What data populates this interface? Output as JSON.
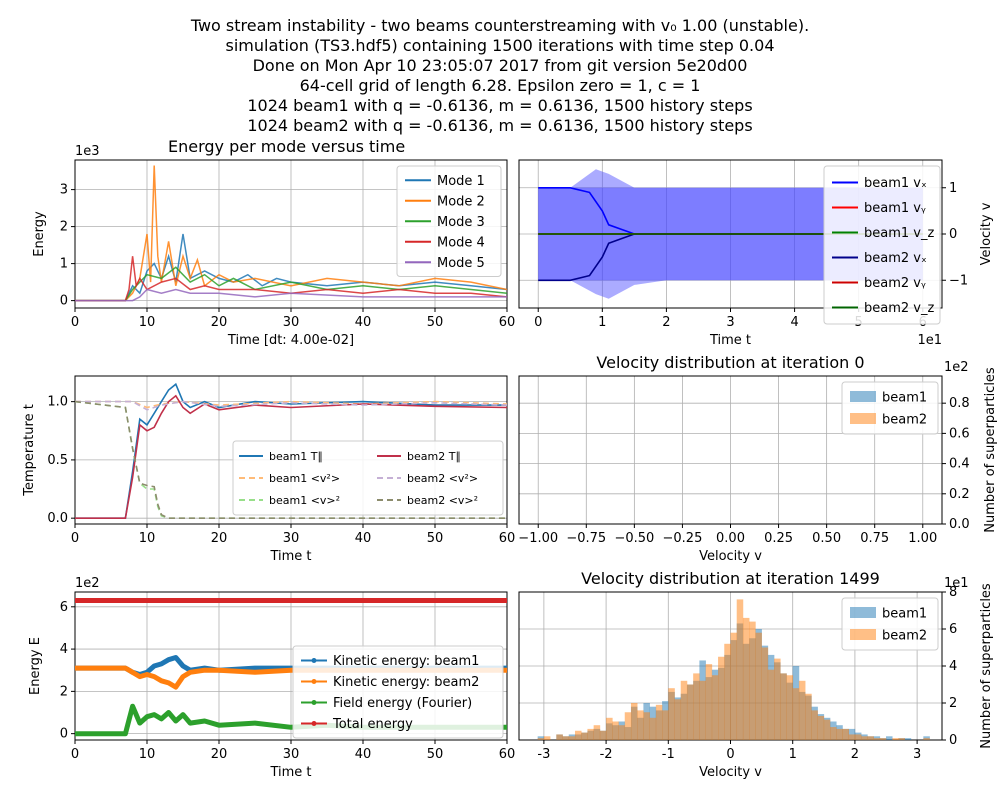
{
  "figure": {
    "title_lines": [
      "Two stream instability - two beams counterstreaming with v₀ 1.00 (unstable).",
      "simulation (TS3.hdf5) containing 1500 iterations with time step 0.04",
      "Done on Mon Apr 10 23:05:07 2017 from git version 5e20d00",
      "64-cell grid of length 6.28. Epsilon zero = 1, c = 1",
      "1024 beam1 with q = -0.6136, m = 0.6136, 1500 history steps",
      "1024 beam2 with q = -0.6136, m = 0.6136, 1500 history steps"
    ]
  },
  "chart_data": [
    {
      "id": "modes",
      "type": "line",
      "title": "Energy per mode versus time",
      "xlabel": "Time [dt: 4.00e-02]",
      "ylabel": "Energy",
      "y_multiplier": "1e3",
      "xlim": [
        0,
        60
      ],
      "ylim": [
        -0.2,
        3.8
      ],
      "xticks": [
        0,
        10,
        20,
        30,
        40,
        50,
        60
      ],
      "yticks": [
        0,
        1,
        2,
        3
      ],
      "grid": true,
      "legend": "top-right",
      "colors": [
        "#1f77b4",
        "#ff7f0e",
        "#2ca02c",
        "#d62728",
        "#9467bd"
      ],
      "series": [
        {
          "name": "Mode 1",
          "x": [
            0,
            7,
            8,
            9,
            10,
            11,
            12,
            13,
            14,
            15,
            16,
            18,
            20,
            22,
            24,
            26,
            28,
            30,
            35,
            40,
            45,
            50,
            55,
            60
          ],
          "y": [
            0,
            0,
            0.4,
            0.2,
            0.8,
            1.0,
            0.6,
            1.2,
            0.5,
            1.8,
            0.6,
            0.8,
            0.6,
            0.5,
            0.7,
            0.4,
            0.6,
            0.5,
            0.4,
            0.5,
            0.4,
            0.5,
            0.4,
            0.3
          ]
        },
        {
          "name": "Mode 2",
          "x": [
            0,
            7,
            8,
            9,
            10,
            10.5,
            11,
            11.5,
            12,
            13,
            14,
            15,
            16,
            17,
            18,
            20,
            22,
            25,
            30,
            35,
            40,
            45,
            50,
            55,
            60
          ],
          "y": [
            0,
            0,
            0.2,
            0.6,
            1.8,
            0.5,
            3.65,
            1.2,
            0.5,
            1.6,
            0.4,
            1.2,
            0.6,
            1.1,
            0.4,
            0.7,
            0.5,
            0.6,
            0.4,
            0.6,
            0.5,
            0.4,
            0.6,
            0.5,
            0.3
          ]
        },
        {
          "name": "Mode 3",
          "x": [
            0,
            7,
            8,
            9,
            10,
            12,
            14,
            16,
            18,
            20,
            22,
            25,
            30,
            35,
            40,
            45,
            50,
            55,
            60
          ],
          "y": [
            0,
            0,
            0.3,
            0.5,
            0.7,
            0.6,
            0.9,
            0.5,
            0.7,
            0.4,
            0.6,
            0.3,
            0.5,
            0.3,
            0.4,
            0.3,
            0.4,
            0.3,
            0.2
          ]
        },
        {
          "name": "Mode 4",
          "x": [
            0,
            7,
            7.5,
            8,
            8.5,
            9,
            10,
            12,
            14,
            16,
            18,
            20,
            25,
            30,
            35,
            40,
            45,
            50,
            55,
            60
          ],
          "y": [
            0,
            0,
            0.3,
            1.2,
            0.4,
            0.6,
            0.3,
            0.5,
            0.6,
            0.3,
            0.4,
            0.3,
            0.3,
            0.2,
            0.3,
            0.2,
            0.3,
            0.2,
            0.2,
            0.1
          ]
        },
        {
          "name": "Mode 5",
          "x": [
            0,
            8,
            9,
            10,
            12,
            14,
            16,
            20,
            25,
            30,
            40,
            50,
            60
          ],
          "y": [
            0,
            0,
            0.1,
            0.3,
            0.2,
            0.3,
            0.2,
            0.2,
            0.1,
            0.2,
            0.1,
            0.1,
            0.1
          ]
        }
      ]
    },
    {
      "id": "velocity",
      "type": "line",
      "xlabel": "Time t",
      "ylabel": "Velocity v",
      "x_multiplier": "1e1",
      "xlim": [
        -0.3,
        6.3
      ],
      "ylim": [
        -1.6,
        1.6
      ],
      "xticks": [
        0,
        1,
        2,
        3,
        4,
        5,
        6
      ],
      "yticks": [
        -1,
        0,
        1
      ],
      "grid": true,
      "legend": "top-right",
      "band_color": "#4444ff",
      "band": {
        "t": [
          0,
          0.5,
          0.9,
          1.1,
          1.5,
          2,
          3,
          4,
          5,
          6
        ],
        "upper": [
          1.0,
          1.0,
          1.4,
          1.3,
          1.0,
          1.0,
          1.0,
          1.0,
          1.0,
          1.0
        ],
        "lower": [
          -1.0,
          -1.0,
          -1.3,
          -1.4,
          -1.1,
          -1.0,
          -1.0,
          -1.0,
          -1.0,
          -1.0
        ]
      },
      "series": [
        {
          "name": "beam1 vₓ",
          "color": "#0000ff",
          "t": [
            0,
            0.5,
            0.8,
            1.0,
            1.1,
            1.3,
            1.5,
            2,
            3,
            4,
            5,
            6
          ],
          "v": [
            1.0,
            1.0,
            0.9,
            0.5,
            0.2,
            0.1,
            0.0,
            0.0,
            0.0,
            0.0,
            0.0,
            0.0
          ]
        },
        {
          "name": "beam1 vᵧ",
          "color": "#ff0000",
          "t": [
            0,
            6
          ],
          "v": [
            0,
            0
          ]
        },
        {
          "name": "beam1 v_z",
          "color": "#008000",
          "t": [
            0,
            6
          ],
          "v": [
            0,
            0
          ]
        },
        {
          "name": "beam2 vₓ",
          "color": "#00008b",
          "t": [
            0,
            0.5,
            0.8,
            1.0,
            1.1,
            1.3,
            1.5,
            2,
            3,
            4,
            5,
            6
          ],
          "v": [
            -1.0,
            -1.0,
            -0.9,
            -0.5,
            -0.2,
            -0.1,
            0.0,
            0.0,
            0.0,
            0.0,
            0.0,
            0.0
          ]
        },
        {
          "name": "beam2 vᵧ",
          "color": "#cc0000",
          "t": [
            0,
            6
          ],
          "v": [
            0,
            0
          ]
        },
        {
          "name": "beam2 v_z",
          "color": "#006400",
          "t": [
            0,
            6
          ],
          "v": [
            0,
            0
          ]
        }
      ]
    },
    {
      "id": "temperature",
      "type": "line",
      "xlabel": "Time t",
      "ylabel": "Temperature t",
      "xlim": [
        0,
        60
      ],
      "ylim": [
        -0.05,
        1.22
      ],
      "xticks": [
        0,
        10,
        20,
        30,
        40,
        50,
        60
      ],
      "yticks": [
        0.0,
        0.5,
        1.0
      ],
      "grid": true,
      "legend": "center-right",
      "series": [
        {
          "name": "beam1 T∥",
          "color": "#1f77b4",
          "dash": "",
          "x": [
            0,
            7,
            8,
            9,
            10,
            11,
            12,
            13,
            14,
            15,
            16,
            18,
            20,
            25,
            30,
            40,
            50,
            60
          ],
          "y": [
            0,
            0,
            0.4,
            0.85,
            0.8,
            0.9,
            1.0,
            1.1,
            1.15,
            1.0,
            0.95,
            1.0,
            0.95,
            1.0,
            0.98,
            1.0,
            0.97,
            0.97
          ]
        },
        {
          "name": "beam1 <v²>",
          "color": "#ffbb78",
          "dash": "6,4",
          "x": [
            0,
            8,
            10,
            12,
            15,
            20,
            30,
            40,
            50,
            60
          ],
          "y": [
            1.0,
            1.0,
            0.95,
            0.98,
            1.0,
            0.97,
            1.0,
            0.98,
            1.0,
            0.98
          ]
        },
        {
          "name": "beam1 <v>²",
          "color": "#98df8a",
          "dash": "6,4",
          "x": [
            0,
            7,
            8,
            9,
            10,
            11,
            11.5,
            12,
            13,
            20,
            40,
            60
          ],
          "y": [
            1.0,
            0.95,
            0.6,
            0.3,
            0.25,
            0.25,
            0.1,
            0.02,
            0.0,
            0.0,
            0.0,
            0.0
          ]
        },
        {
          "name": "beam2 T∥",
          "color": "#c0304a",
          "dash": "",
          "x": [
            0,
            7,
            8,
            9,
            10,
            11,
            12,
            13,
            14,
            15,
            16,
            18,
            20,
            25,
            30,
            40,
            50,
            60
          ],
          "y": [
            0,
            0,
            0.35,
            0.8,
            0.75,
            0.78,
            0.9,
            1.0,
            1.05,
            0.95,
            0.9,
            0.98,
            0.93,
            0.97,
            0.95,
            0.98,
            0.96,
            0.95
          ]
        },
        {
          "name": "beam2 <v²>",
          "color": "#c5b0d5",
          "dash": "6,4",
          "x": [
            0,
            8,
            10,
            12,
            15,
            20,
            30,
            40,
            50,
            60
          ],
          "y": [
            1.0,
            1.0,
            0.93,
            0.97,
            1.0,
            0.96,
            0.99,
            0.97,
            0.99,
            0.97
          ]
        },
        {
          "name": "beam2 <v>²",
          "color": "#8c8c6c",
          "dash": "6,4",
          "x": [
            0,
            7,
            8,
            9,
            10,
            11,
            11.5,
            12,
            13,
            20,
            40,
            60
          ],
          "y": [
            1.0,
            0.95,
            0.6,
            0.3,
            0.28,
            0.27,
            0.12,
            0.03,
            0.0,
            0.0,
            0.0,
            0.0
          ]
        }
      ]
    },
    {
      "id": "hist0",
      "type": "bar",
      "title": "Velocity distribution at iteration 0",
      "xlabel": "Velocity v",
      "ylabel": "Number of superparticles",
      "y_multiplier": "1e2",
      "xlim": [
        -1.1,
        1.1
      ],
      "ylim": [
        0,
        0.98
      ],
      "xticks": [
        "−1.00",
        "−0.75",
        "−0.50",
        "−0.25",
        "0.00",
        "0.25",
        "0.50",
        "0.75",
        "1.00"
      ],
      "yticks": [
        "0.0",
        "0.2",
        "0.4",
        "0.6",
        "0.8"
      ],
      "grid": true,
      "legend": "top-right",
      "series": [
        {
          "name": "beam1",
          "color": "#1f77b4"
        },
        {
          "name": "beam2",
          "color": "#ff7f0e"
        }
      ]
    },
    {
      "id": "energy",
      "type": "line",
      "xlabel": "Time t",
      "ylabel": "Energy E",
      "y_multiplier": "1e2",
      "xlim": [
        0,
        60
      ],
      "ylim": [
        -0.3,
        6.7
      ],
      "xticks": [
        0,
        10,
        20,
        30,
        40,
        50,
        60
      ],
      "yticks": [
        0,
        2,
        4,
        6
      ],
      "grid": true,
      "legend": "lower-right",
      "series": [
        {
          "name": "Kinetic energy: beam1",
          "color": "#1f77b4",
          "x": [
            0,
            7,
            8,
            9,
            10,
            11,
            12,
            13,
            14,
            15,
            16,
            18,
            20,
            25,
            30,
            40,
            50,
            60
          ],
          "y": [
            3.1,
            3.1,
            2.9,
            2.8,
            2.9,
            3.2,
            3.3,
            3.5,
            3.6,
            3.2,
            3.0,
            3.1,
            3.0,
            3.1,
            3.1,
            3.1,
            3.1,
            3.1
          ]
        },
        {
          "name": "Kinetic energy: beam2",
          "color": "#ff7f0e",
          "x": [
            0,
            7,
            8,
            9,
            10,
            11,
            12,
            13,
            14,
            15,
            16,
            18,
            20,
            25,
            30,
            40,
            50,
            60
          ],
          "y": [
            3.1,
            3.1,
            2.9,
            2.7,
            2.8,
            2.7,
            2.5,
            2.4,
            2.2,
            2.7,
            2.9,
            3.0,
            3.0,
            2.9,
            3.0,
            3.0,
            3.0,
            3.0
          ]
        },
        {
          "name": "Field energy (Fourier)",
          "color": "#2ca02c",
          "x": [
            0,
            7,
            8,
            9,
            10,
            11,
            12,
            13,
            14,
            15,
            16,
            18,
            20,
            25,
            30,
            35,
            40,
            50,
            60
          ],
          "y": [
            0,
            0,
            1.3,
            0.5,
            0.8,
            0.9,
            0.7,
            1.0,
            0.6,
            0.9,
            0.5,
            0.6,
            0.4,
            0.5,
            0.3,
            0.4,
            0.3,
            0.3,
            0.3
          ]
        },
        {
          "name": "Total energy",
          "color": "#d62728",
          "x": [
            0,
            10,
            20,
            30,
            40,
            50,
            60
          ],
          "y": [
            6.3,
            6.3,
            6.3,
            6.3,
            6.3,
            6.3,
            6.3
          ]
        }
      ]
    },
    {
      "id": "hist1499",
      "type": "bar",
      "title": "Velocity distribution at iteration 1499",
      "xlabel": "Velocity v",
      "ylabel": "Number of superparticles",
      "y_multiplier": "1e1",
      "xlim": [
        -3.4,
        3.4
      ],
      "ylim": [
        0,
        8
      ],
      "xticks": [
        -3,
        -2,
        -1,
        0,
        1,
        2,
        3
      ],
      "yticks": [
        0,
        2,
        4,
        6,
        8
      ],
      "grid": true,
      "legend": "top-right",
      "bin_start": -3.1,
      "bin_width": 0.1,
      "series": [
        {
          "name": "beam1",
          "color": "#1f77b4",
          "values": [
            0.2,
            0,
            0,
            0.3,
            0.2,
            0.3,
            0.3,
            0.4,
            0.5,
            0.6,
            0.5,
            0.9,
            0.8,
            1.0,
            0.7,
            1.8,
            1.2,
            2.0,
            1.8,
            1.6,
            2.1,
            2.6,
            2.3,
            2.5,
            3.0,
            3.2,
            4.3,
            3.4,
            3.8,
            3.9,
            4.6,
            5.4,
            6.3,
            5.2,
            5.5,
            6.0,
            5.1,
            4.6,
            4.2,
            3.6,
            3.1,
            4.0,
            2.6,
            2.4,
            1.8,
            1.4,
            1.2,
            1.0,
            0.8,
            0.6,
            0.6,
            0.4,
            0.3,
            0.2,
            0.2,
            0.1,
            0.2,
            0,
            0.1,
            0.1,
            0,
            0,
            0.2
          ]
        },
        {
          "name": "beam2",
          "color": "#ff7f0e",
          "values": [
            0.1,
            0.2,
            0,
            0.3,
            0.2,
            0.2,
            0.5,
            0.4,
            0.6,
            0.8,
            0.5,
            1.2,
            1.0,
            0.8,
            1.5,
            2.0,
            1.6,
            1.5,
            1.2,
            1.9,
            1.6,
            2.8,
            2.2,
            3.2,
            3.0,
            3.6,
            3.2,
            4.1,
            3.5,
            4.5,
            5.2,
            5.8,
            7.6,
            6.6,
            6.4,
            5.8,
            5.0,
            3.8,
            4.4,
            3.6,
            3.5,
            2.8,
            3.2,
            2.5,
            1.6,
            1.3,
            1.1,
            0.7,
            0.6,
            0.6,
            0.3,
            0.3,
            0.2,
            0.2,
            0.1,
            0.1,
            0,
            0.1,
            0.1,
            0,
            0,
            0,
            0.1
          ]
        }
      ]
    }
  ]
}
